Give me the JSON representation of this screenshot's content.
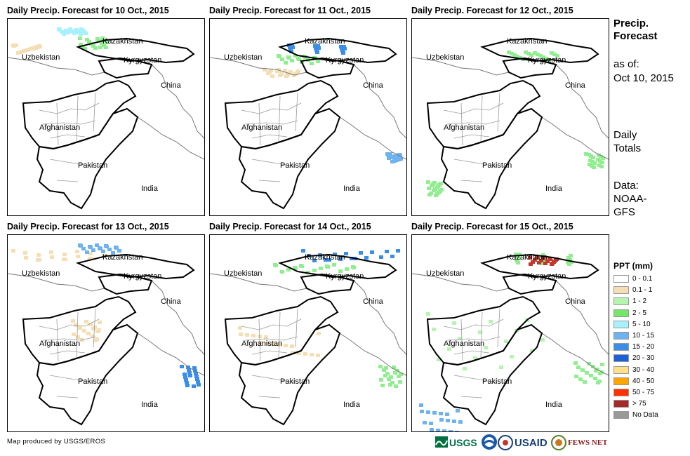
{
  "panels": [
    {
      "title": "Daily Precip. Forecast for 10 Oct., 2015",
      "bands": [
        {
          "x": 70,
          "y": 12,
          "w": 40,
          "h": 8,
          "color": "#a6f0ff"
        },
        {
          "x": 5,
          "y": 35,
          "w": 40,
          "h": 12,
          "color": "#f5deb3"
        },
        {
          "x": 100,
          "y": 25,
          "w": 40,
          "h": 16,
          "color": "#90ee90"
        }
      ]
    },
    {
      "title": "Daily Precip. Forecast for 11 Oct., 2015",
      "bands": [
        {
          "x": 110,
          "y": 35,
          "w": 110,
          "h": 12,
          "color": "#3a8ee8"
        },
        {
          "x": 95,
          "y": 50,
          "w": 60,
          "h": 12,
          "color": "#90ee90"
        },
        {
          "x": 75,
          "y": 70,
          "w": 50,
          "h": 10,
          "color": "#f5deb3"
        },
        {
          "x": 250,
          "y": 190,
          "w": 20,
          "h": 12,
          "color": "#6fb2f0"
        }
      ]
    },
    {
      "title": "Daily Precip. Forecast for 12 Oct., 2015",
      "bands": [
        {
          "x": 135,
          "y": 45,
          "w": 70,
          "h": 12,
          "color": "#90ee90"
        },
        {
          "x": 245,
          "y": 190,
          "w": 25,
          "h": 20,
          "color": "#90ee90"
        },
        {
          "x": 20,
          "y": 230,
          "w": 20,
          "h": 20,
          "color": "#90ee90"
        }
      ]
    },
    {
      "title": "Daily Precip. Forecast for 13 Oct., 2015",
      "bands": [
        {
          "x": 5,
          "y": 20,
          "w": 130,
          "h": 14,
          "color": "#f5deb3"
        },
        {
          "x": 100,
          "y": 12,
          "w": 60,
          "h": 12,
          "color": "#6fb2f0"
        },
        {
          "x": 245,
          "y": 185,
          "w": 25,
          "h": 30,
          "color": "#3a8ee8"
        },
        {
          "x": 90,
          "y": 120,
          "w": 40,
          "h": 30,
          "color": "#f5deb3"
        }
      ]
    },
    {
      "title": "Daily Precip. Forecast for 14 Oct., 2015",
      "bands": [
        {
          "x": 130,
          "y": 20,
          "w": 140,
          "h": 15,
          "color": "#3a8ee8"
        },
        {
          "x": 90,
          "y": 40,
          "w": 120,
          "h": 12,
          "color": "#90ee90"
        },
        {
          "x": 40,
          "y": 130,
          "w": 120,
          "h": 40,
          "color": "#f5deb3"
        },
        {
          "x": 240,
          "y": 185,
          "w": 30,
          "h": 30,
          "color": "#90ee90"
        }
      ]
    },
    {
      "title": "Daily Precip. Forecast for 15 Oct., 2015",
      "bands": [
        {
          "x": 145,
          "y": 25,
          "w": 110,
          "h": 15,
          "color": "#90ee90"
        },
        {
          "x": 20,
          "y": 110,
          "w": 170,
          "h": 80,
          "color": "#b6f5b0"
        },
        {
          "x": 10,
          "y": 240,
          "w": 60,
          "h": 40,
          "color": "#6fb2f0"
        },
        {
          "x": 230,
          "y": 180,
          "w": 40,
          "h": 30,
          "color": "#90ee90"
        },
        {
          "x": 165,
          "y": 30,
          "w": 40,
          "h": 10,
          "color": "#c0392b"
        }
      ]
    }
  ],
  "map_labels": {
    "uzbekistan": "Uzbekistan",
    "kazakhstan": "Kazakhstan",
    "kyrgyzstan": "Kyrgyzstan",
    "china": "China",
    "afghanistan": "Afghanistan",
    "pakistan": "Pakistan",
    "india": "India"
  },
  "side": {
    "title": "Precip.\nForecast",
    "as_of": "as of:",
    "date": "Oct 10, 2015",
    "totals": "Daily\nTotals",
    "data_label": "Data:",
    "source": "NOAA-\nGFS"
  },
  "legend": {
    "title": "PPT (mm)",
    "items": [
      {
        "label": "0 - 0.1",
        "color": "#ffffff"
      },
      {
        "label": "0.1 - 1",
        "color": "#f5deb3"
      },
      {
        "label": "1 - 2",
        "color": "#b6f5b0"
      },
      {
        "label": "2 - 5",
        "color": "#76e66a"
      },
      {
        "label": "5 - 10",
        "color": "#a6f0ff"
      },
      {
        "label": "10 - 15",
        "color": "#6fb2f0"
      },
      {
        "label": "15 - 20",
        "color": "#3a8ee8"
      },
      {
        "label": "20 - 30",
        "color": "#1c5fd6"
      },
      {
        "label": "30 - 40",
        "color": "#ffe08a"
      },
      {
        "label": "40 - 50",
        "color": "#ffa500"
      },
      {
        "label": "50 - 75",
        "color": "#ff3300"
      },
      {
        "label": "> 75",
        "color": "#a52a2a"
      },
      {
        "label": "No Data",
        "color": "#999999"
      }
    ]
  },
  "footer": {
    "credit": "Map produced by USGS/EROS",
    "logos": {
      "usgs": "USGS",
      "usaid": "USAID",
      "fewsnet": "FEWS NET"
    }
  }
}
